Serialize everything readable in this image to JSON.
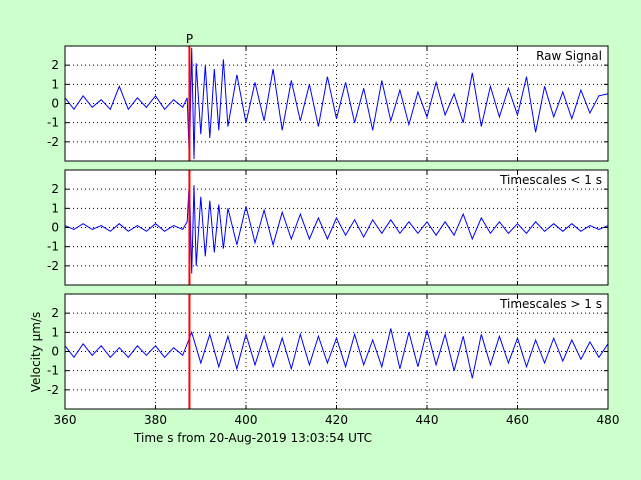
{
  "colors": {
    "background": "#ccffcc",
    "panel": "#ffffff",
    "trace": "#0000ff",
    "marker": "#ff0000",
    "grid": "#000000"
  },
  "chart_data": {
    "type": "line",
    "xlabel": "Time s from 20-Aug-2019 13:03:54 UTC",
    "ylabel": "Velocity μm/s",
    "xlim": [
      360,
      480
    ],
    "x_ticks": [
      360,
      380,
      400,
      420,
      440,
      460,
      480
    ],
    "grid": true,
    "phase_marker": {
      "label": "P",
      "time": 387.5
    },
    "panels": [
      {
        "legend": "Raw Signal",
        "ylim": [
          -3,
          3
        ],
        "y_ticks": [
          -2,
          -1,
          0,
          1,
          2
        ],
        "series": [
          {
            "x": [
              360,
              362,
              364,
              366,
              368,
              370,
              372,
              374,
              376,
              378,
              380,
              382,
              384,
              386,
              387,
              387.5,
              388,
              388.5,
              389,
              390,
              391,
              392,
              393,
              394,
              395,
              396,
              398,
              400,
              402,
              404,
              406,
              408,
              410,
              412,
              414,
              416,
              418,
              420,
              422,
              424,
              426,
              428,
              430,
              432,
              434,
              436,
              438,
              440,
              442,
              444,
              446,
              448,
              450,
              452,
              454,
              456,
              458,
              460,
              462,
              464,
              466,
              468,
              470,
              472,
              474,
              476,
              478,
              480
            ],
            "y": [
              0.3,
              -0.3,
              0.4,
              -0.2,
              0.2,
              -0.3,
              0.9,
              -0.3,
              0.3,
              -0.2,
              0.4,
              -0.3,
              0.2,
              -0.2,
              0.3,
              -3.0,
              2.9,
              -2.9,
              2.1,
              -1.6,
              2.0,
              -1.8,
              1.8,
              -1.4,
              2.3,
              -1.2,
              1.5,
              -1.0,
              1.1,
              -0.9,
              1.8,
              -1.4,
              1.2,
              -0.9,
              1.0,
              -1.2,
              1.4,
              -0.8,
              1.1,
              -1.0,
              0.8,
              -1.4,
              1.2,
              -0.9,
              0.7,
              -1.1,
              0.6,
              -0.7,
              1.1,
              -0.6,
              0.5,
              -1.0,
              1.6,
              -1.2,
              0.9,
              -0.7,
              0.8,
              -0.6,
              1.4,
              -1.5,
              0.9,
              -0.7,
              0.6,
              -0.8,
              0.7,
              -0.5,
              0.4,
              0.5
            ]
          }
        ]
      },
      {
        "legend": "Timescales < 1 s",
        "ylim": [
          -3,
          3
        ],
        "y_ticks": [
          -2,
          -1,
          0,
          1,
          2
        ],
        "series": [
          {
            "x": [
              360,
              362,
              364,
              366,
              368,
              370,
              372,
              374,
              376,
              378,
              380,
              382,
              384,
              386,
              387,
              387.5,
              388,
              388.5,
              389,
              390,
              391,
              392,
              393,
              394,
              395,
              396,
              398,
              400,
              402,
              404,
              406,
              408,
              410,
              412,
              414,
              416,
              418,
              420,
              422,
              424,
              426,
              428,
              430,
              432,
              434,
              436,
              438,
              440,
              442,
              444,
              446,
              448,
              450,
              452,
              454,
              456,
              458,
              460,
              462,
              464,
              466,
              468,
              470,
              472,
              474,
              476,
              478,
              480
            ],
            "y": [
              0.1,
              -0.1,
              0.2,
              -0.1,
              0.1,
              -0.2,
              0.2,
              -0.2,
              0.1,
              -0.2,
              0.2,
              -0.2,
              0.1,
              -0.1,
              0.3,
              2.5,
              -2.4,
              2.2,
              -2.0,
              1.6,
              -1.5,
              1.4,
              -1.3,
              1.2,
              -1.1,
              1.0,
              -0.9,
              1.1,
              -0.8,
              0.9,
              -0.9,
              0.8,
              -0.6,
              0.7,
              -0.6,
              0.5,
              -0.6,
              0.5,
              -0.4,
              0.4,
              -0.5,
              0.4,
              -0.3,
              0.4,
              -0.3,
              0.3,
              -0.3,
              0.3,
              -0.4,
              0.3,
              -0.4,
              0.7,
              -0.6,
              0.5,
              -0.3,
              0.3,
              -0.3,
              0.2,
              -0.3,
              0.3,
              -0.2,
              0.2,
              -0.2,
              0.2,
              -0.2,
              0.1,
              -0.1,
              0.1
            ]
          }
        ]
      },
      {
        "legend": "Timescales > 1 s",
        "ylim": [
          -3,
          3
        ],
        "y_ticks": [
          -2,
          -1,
          0,
          1,
          2
        ],
        "series": [
          {
            "x": [
              360,
              362,
              364,
              366,
              368,
              370,
              372,
              374,
              376,
              378,
              380,
              382,
              384,
              386,
              388,
              390,
              392,
              394,
              396,
              398,
              400,
              402,
              404,
              406,
              408,
              410,
              412,
              414,
              416,
              418,
              420,
              422,
              424,
              426,
              428,
              430,
              432,
              434,
              436,
              438,
              440,
              442,
              444,
              446,
              448,
              450,
              452,
              454,
              456,
              458,
              460,
              462,
              464,
              466,
              468,
              470,
              472,
              474,
              476,
              478,
              480
            ],
            "y": [
              0.3,
              -0.3,
              0.4,
              -0.2,
              0.3,
              -0.3,
              0.2,
              -0.3,
              0.3,
              -0.2,
              0.3,
              -0.3,
              0.2,
              -0.2,
              1.0,
              -0.6,
              0.9,
              -0.8,
              0.8,
              -0.9,
              0.9,
              -0.7,
              0.8,
              -0.8,
              0.7,
              -0.9,
              0.9,
              -0.7,
              0.8,
              -0.6,
              0.7,
              -0.8,
              0.9,
              -0.7,
              0.6,
              -0.8,
              1.2,
              -0.9,
              1.0,
              -0.8,
              1.1,
              -0.7,
              0.9,
              -1.0,
              0.8,
              -1.4,
              0.9,
              -0.7,
              0.8,
              -0.6,
              0.7,
              -0.8,
              0.6,
              -0.6,
              0.7,
              -0.5,
              0.6,
              -0.4,
              0.5,
              -0.3,
              0.4
            ]
          }
        ]
      }
    ]
  }
}
